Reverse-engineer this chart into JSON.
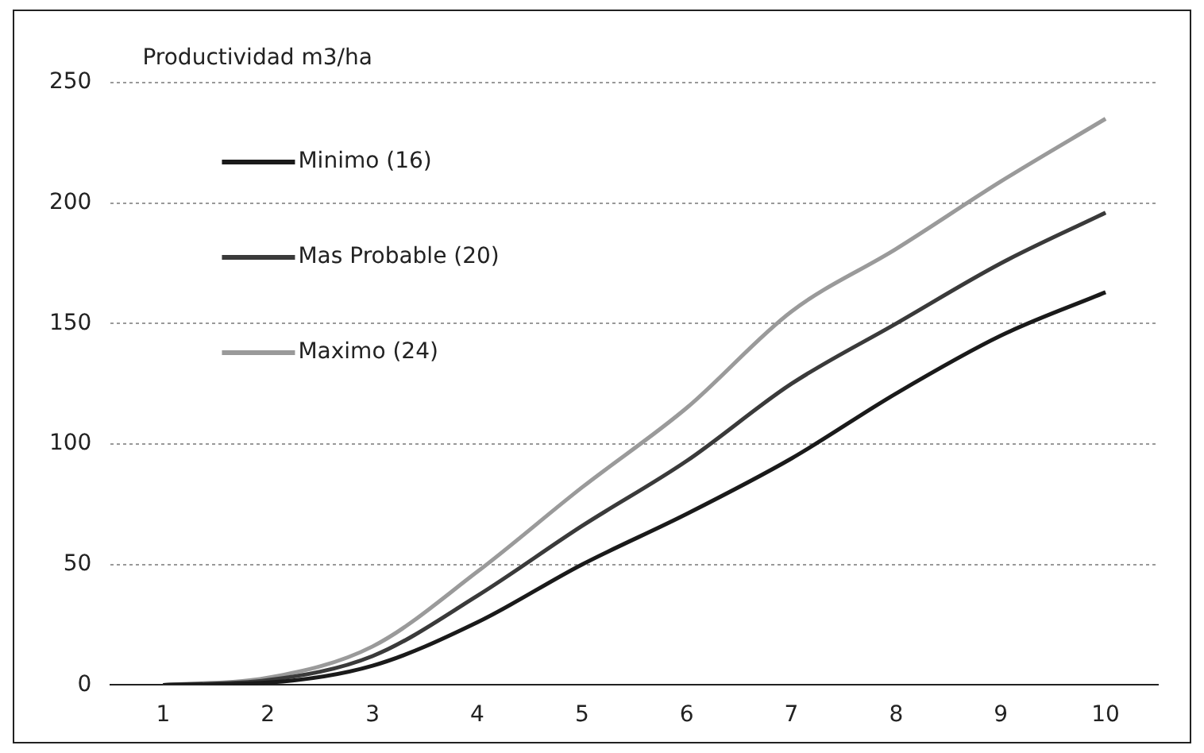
{
  "chart_data": {
    "type": "line",
    "title": "Productividad m3/ha",
    "categories": [
      "1",
      "2",
      "3",
      "4",
      "5",
      "6",
      "7",
      "8",
      "9",
      "10"
    ],
    "series": [
      {
        "name": "Minimo (16)",
        "color": "#1a1a1a",
        "values": [
          0,
          1,
          8,
          26,
          50,
          71,
          94,
          121,
          145,
          163
        ]
      },
      {
        "name": "Mas Probable (20)",
        "color": "#3a3a3a",
        "values": [
          0,
          2,
          12,
          37,
          66,
          93,
          125,
          150,
          175,
          196
        ]
      },
      {
        "name": "Maximo (24)",
        "color": "#9a9a9a",
        "values": [
          0,
          3,
          16,
          47,
          82,
          115,
          155,
          181,
          209,
          235
        ]
      }
    ],
    "ylim": [
      0,
      250
    ],
    "yticks": [
      0,
      50,
      100,
      150,
      200,
      250
    ],
    "grid": "y",
    "legend": "top left",
    "marker": "none",
    "line_style": "solid"
  }
}
